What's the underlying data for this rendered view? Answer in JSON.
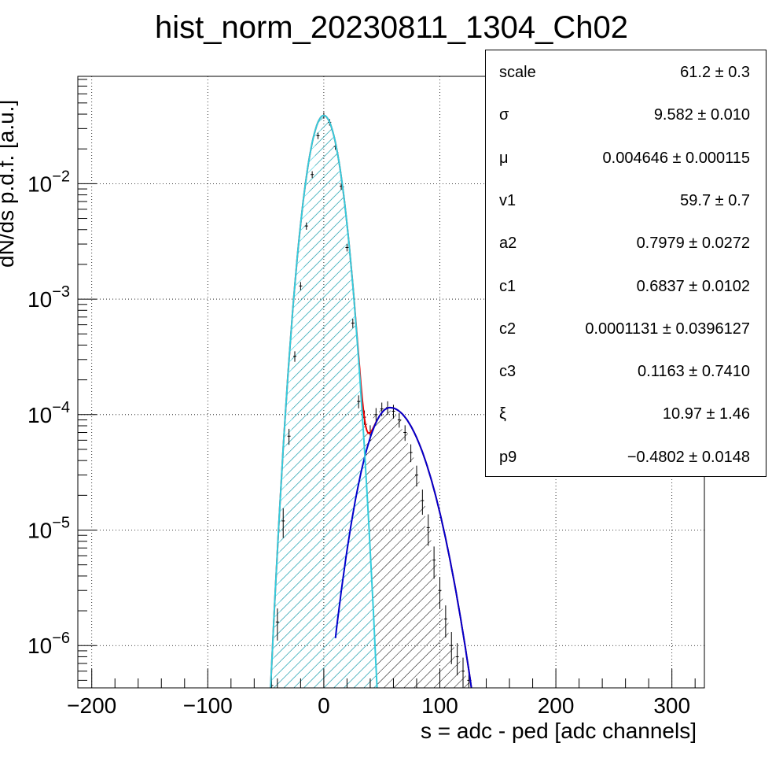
{
  "chart_data": {
    "type": "histogram",
    "title": "hist_norm_20230811_1304_Ch02",
    "xlabel": "s = adc - ped [adc channels]",
    "ylabel": "dN/ds p.d.f. [a.u.]",
    "xlim": [
      -212,
      328
    ],
    "ylim": [
      4.3e-07,
      0.085
    ],
    "yscale": "log",
    "grid": true,
    "x_ticks": [
      -200,
      -100,
      0,
      100,
      200,
      300
    ],
    "x_tick_labels": [
      "−200",
      "−100",
      "0",
      "100",
      "200",
      "300"
    ],
    "y_ticks": [
      {
        "value": 1e-06,
        "base": "10",
        "exp": "−6"
      },
      {
        "value": 1e-05,
        "base": "10",
        "exp": "−5"
      },
      {
        "value": 0.0001,
        "base": "10",
        "exp": "−4"
      },
      {
        "value": 0.001,
        "base": "10",
        "exp": "−3"
      },
      {
        "value": 0.01,
        "base": "10",
        "exp": "−2"
      }
    ],
    "pedestal_fit": {
      "peak_x": 0,
      "peak_y": 0.039,
      "sigma": 9.6,
      "color": "#33ccdd"
    },
    "signal_fit": {
      "peak_x": 57,
      "peak_y": 0.000115,
      "color": "#0000cc"
    },
    "total_fit_color": "#ee0000",
    "histogram": {
      "x": [
        -45,
        -40,
        -35,
        -30,
        -25,
        -20,
        -15,
        -10,
        -5,
        0,
        5,
        10,
        15,
        20,
        25,
        30,
        35,
        40,
        45,
        50,
        55,
        60,
        65,
        70,
        75,
        80,
        85,
        90,
        95,
        100,
        105,
        110,
        115,
        120,
        125
      ],
      "y": [
        4.5e-07,
        1.6e-06,
        1.2e-05,
        6.5e-05,
        0.00032,
        0.0013,
        0.0043,
        0.012,
        0.026,
        0.039,
        0.034,
        0.021,
        0.0095,
        0.0028,
        0.00062,
        0.00013,
        9.5e-05,
        7e-05,
        0.0001,
        0.000112,
        0.000115,
        0.000107,
        9e-05,
        7e-05,
        4.7e-05,
        3e-05,
        1.8e-05,
        1.05e-05,
        5.5e-06,
        3e-06,
        1.7e-06,
        1e-06,
        8e-07,
        6e-07,
        5e-07
      ]
    }
  },
  "stats": [
    {
      "name": "scale",
      "value": "61.2 ± 0.3"
    },
    {
      "name": "σ",
      "value": "9.582 ± 0.010"
    },
    {
      "name": "μ",
      "value": "0.004646 ± 0.000115"
    },
    {
      "name": "v1",
      "value": "59.7 ± 0.7"
    },
    {
      "name": "a2",
      "value": "0.7979 ± 0.0272"
    },
    {
      "name": "c1",
      "value": "0.6837 ± 0.0102"
    },
    {
      "name": "c2",
      "value": "0.0001131 ± 0.0396127"
    },
    {
      "name": "c3",
      "value": "0.1163 ± 0.7410"
    },
    {
      "name": "ξ",
      "value": "10.97 ± 1.46"
    },
    {
      "name": "p9",
      "value": "−0.4802 ± 0.0148"
    }
  ]
}
